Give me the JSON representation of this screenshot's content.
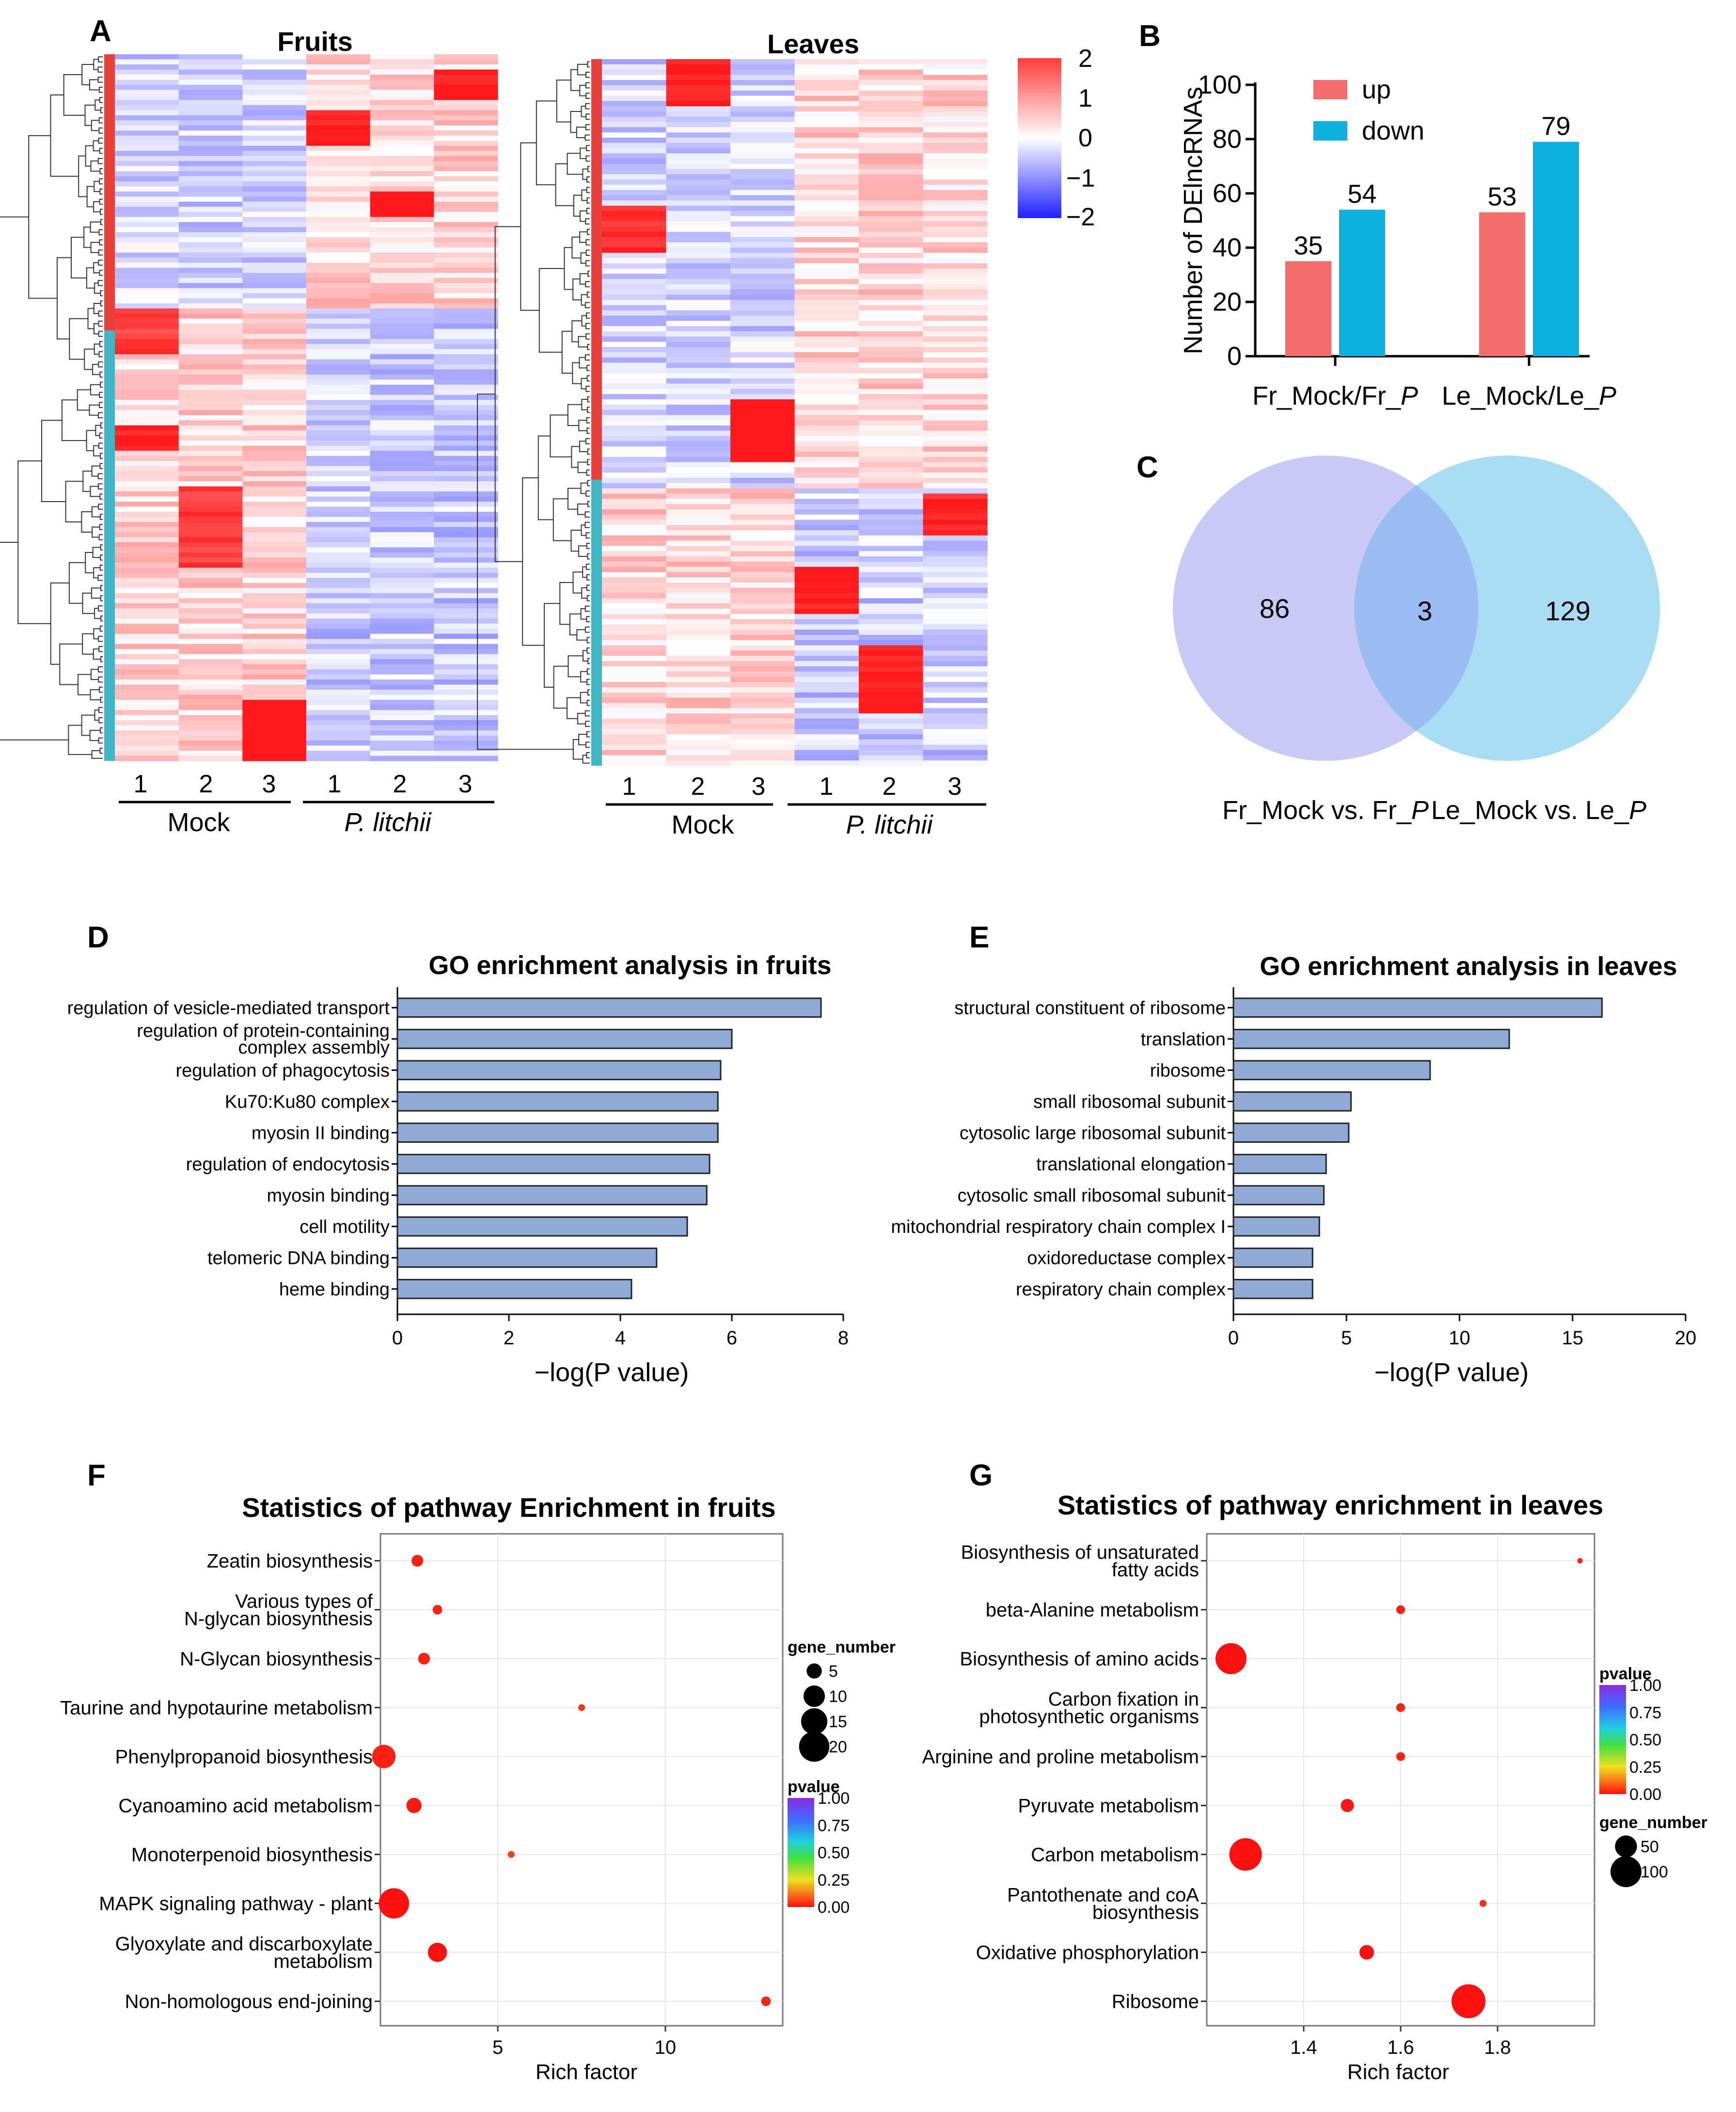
{
  "figure": {
    "panel_labels": [
      "A",
      "B",
      "C",
      "D",
      "E",
      "F",
      "G"
    ]
  },
  "chart_data": [
    {
      "panel": "A",
      "type": "heatmap",
      "subplots": [
        {
          "title": "Fruits",
          "rows_up_cluster": 50,
          "rows_down_cluster": 89,
          "columns": [
            "1",
            "2",
            "3",
            "1",
            "2",
            "3"
          ]
        },
        {
          "title": "Leaves",
          "rows_up_cluster": 82,
          "rows_down_cluster": 53,
          "columns": [
            "1",
            "2",
            "3",
            "1",
            "2",
            "3"
          ]
        }
      ],
      "groups": [
        "Mock",
        "P. litchii"
      ],
      "colorbar": {
        "min": -2,
        "max": 2,
        "ticks": [
          "2",
          "1",
          "0",
          "−1",
          "−2"
        ],
        "colors": [
          "#0000ff",
          "#ffffff",
          "#ff0000"
        ]
      },
      "cluster_colors": {
        "upper": "#e8403a",
        "lower": "#41b6c4"
      }
    },
    {
      "panel": "B",
      "type": "bar",
      "categories": [
        "Fr_Mock/Fr_",
        "Le_Mock/Le_"
      ],
      "category_suffix": "P",
      "series": [
        {
          "name": "up",
          "values": [
            35,
            53
          ],
          "color": "#f46d6d"
        },
        {
          "name": "down",
          "values": [
            54,
            79
          ],
          "color": "#0eb0e0"
        }
      ],
      "ylabel": "Number of DElncRNAs",
      "ylim": [
        0,
        100
      ],
      "yticks": [
        0,
        20,
        40,
        60,
        80,
        100
      ]
    },
    {
      "panel": "C",
      "type": "venn",
      "sets": [
        {
          "label": "Fr_Mock vs. Fr_",
          "suffix": "P",
          "only": 86,
          "color": "#c9c9f5"
        },
        {
          "label": "Le_Mock vs. Le_",
          "suffix": "P",
          "only": 129,
          "color": "#a8dcf2"
        }
      ],
      "intersection": 3,
      "intersection_color": "#9bbcf0"
    },
    {
      "panel": "D",
      "type": "bar",
      "orientation": "horizontal",
      "title": "GO enrichment analysis in fruits",
      "categories": [
        "regulation of vesicle-mediated transport",
        "regulation of protein-containing\ncomplex assembly",
        "regulation of phagocytosis",
        "Ku70:Ku80 complex",
        "myosin II binding",
        "regulation of endocytosis",
        "myosin binding",
        "cell motility",
        "telomeric DNA binding",
        "heme binding"
      ],
      "values": [
        7.6,
        6.0,
        5.8,
        5.75,
        5.75,
        5.6,
        5.55,
        5.2,
        4.65,
        4.2
      ],
      "xlabel": "−log(P value)",
      "xlim": [
        0,
        8
      ],
      "xticks": [
        0,
        2,
        4,
        6,
        8
      ],
      "bar_color": "#8eaad6"
    },
    {
      "panel": "E",
      "type": "bar",
      "orientation": "horizontal",
      "title": "GO enrichment analysis in leaves",
      "categories": [
        "structural constituent of ribosome",
        "translation",
        "ribosome",
        "small ribosomal subunit",
        "cytosolic large ribosomal subunit",
        "translational elongation",
        "cytosolic small ribosomal subunit",
        "mitochondrial respiratory chain complex I",
        "oxidoreductase complex",
        "respiratory chain complex"
      ],
      "values": [
        16.3,
        12.2,
        8.7,
        5.2,
        5.1,
        4.1,
        4.0,
        3.8,
        3.5,
        3.5
      ],
      "xlabel": "−log(P value)",
      "xlim": [
        0,
        20
      ],
      "xticks": [
        0,
        5,
        10,
        15,
        20
      ],
      "bar_color": "#8eaad6"
    },
    {
      "panel": "F",
      "type": "scatter",
      "title": "Statistics of pathway Enrichment in fruits",
      "pathways": [
        "Zeatin biosynthesis",
        "Various types of\nN-glycan  biosynthesis",
        "N-Glycan biosynthesis",
        "Taurine and hypotaurine  metabolism",
        "Phenylpropanoid biosynthesis",
        "Cyanoamino acid metabolism",
        "Monoterpenoid biosynthesis",
        "MAPK signaling pathway - plant",
        "Glyoxylate and discarboxylate\nmetabolism",
        "Non-homologous end-joining"
      ],
      "rich_factor": [
        2.6,
        3.2,
        2.8,
        7.5,
        1.6,
        2.5,
        5.4,
        1.9,
        3.2,
        13.0
      ],
      "gene_number": [
        3,
        2,
        3,
        1,
        12,
        5,
        1,
        20,
        8,
        2
      ],
      "pvalue": [
        0.02,
        0.02,
        0.02,
        0.04,
        0.02,
        0.01,
        0.05,
        0.0,
        0.0,
        0.02
      ],
      "xlabel": "Rich factor",
      "xlim": [
        1.5,
        13.5
      ],
      "xticks": [
        5,
        10
      ],
      "size_legend": {
        "title": "gene_number",
        "values": [
          5,
          10,
          15,
          20
        ]
      },
      "color_legend": {
        "title": "pvalue",
        "ticks": [
          "1.00",
          "0.75",
          "0.50",
          "0.25",
          "0.00"
        ]
      }
    },
    {
      "panel": "G",
      "type": "scatter",
      "title": "Statistics  of pathway enrichment in leaves",
      "pathways": [
        "Biosynthesis of unsaturated\nfatty acids",
        "beta-Alanine metabolism",
        "Biosynthesis of amino acids",
        "Carbon fixation in\nphotosynthetic  organisms",
        "Arginine and proline metabolism",
        "Pyruvate metabolism",
        "Carbon metabolism",
        "Pantothenate and coA\nbiosynthesis",
        "Oxidative phosphorylation",
        "Ribosome"
      ],
      "rich_factor": [
        1.97,
        1.6,
        1.25,
        1.6,
        1.6,
        1.49,
        1.28,
        1.77,
        1.53,
        1.74
      ],
      "gene_number": [
        3,
        8,
        100,
        8,
        8,
        18,
        110,
        5,
        22,
        120
      ],
      "pvalue": [
        0.02,
        0.02,
        0.0,
        0.02,
        0.02,
        0.01,
        0.0,
        0.03,
        0.0,
        0.0
      ],
      "xlabel": "Rich factor",
      "xlim": [
        1.2,
        2.0
      ],
      "xticks": [
        1.4,
        1.6,
        1.8
      ],
      "size_legend": {
        "title": "gene_number",
        "values": [
          50,
          100
        ]
      },
      "color_legend": {
        "title": "pvalue",
        "ticks": [
          "1.00",
          "0.75",
          "0.50",
          "0.25",
          "0.00"
        ]
      }
    }
  ]
}
